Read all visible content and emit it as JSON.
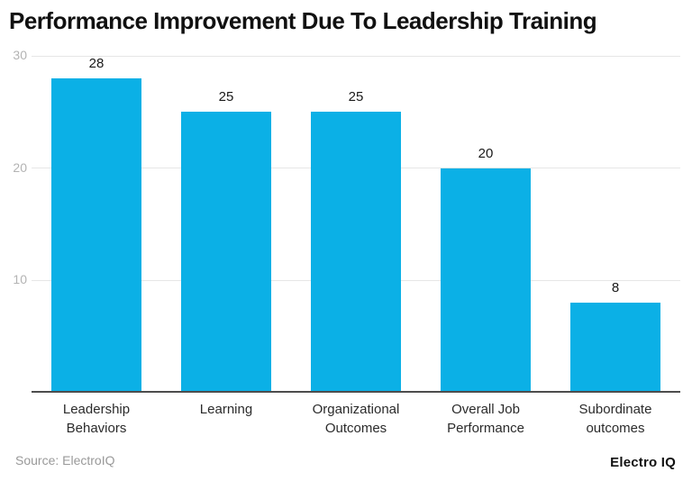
{
  "title": "Performance Improvement Due To Leadership Training",
  "footer": {
    "source": "Source: ElectroIQ",
    "brand": "Electro IQ"
  },
  "colors": {
    "bar": "#0bb0e6",
    "axis": "#4d4d4d",
    "gridline": "#e6e6e6",
    "ytick_label": "#b3b3b3",
    "category_label": "#2b2b2b",
    "value_label": "#1a1a1a",
    "title": "#111111",
    "background": "#ffffff"
  },
  "chart_data": {
    "type": "bar",
    "categories": [
      "Leadership Behaviors",
      "Learning",
      "Organizational Outcomes",
      "Overall Job Performance",
      "Subordinate outcomes"
    ],
    "values": [
      28,
      25,
      25,
      20,
      8
    ],
    "title": "Performance Improvement Due To Leadership Training",
    "xlabel": "",
    "ylabel": "",
    "ylim": [
      0,
      30
    ],
    "yticks": [
      10,
      20,
      30
    ],
    "grid": true,
    "legend": false,
    "bar_labels_shown": true
  }
}
